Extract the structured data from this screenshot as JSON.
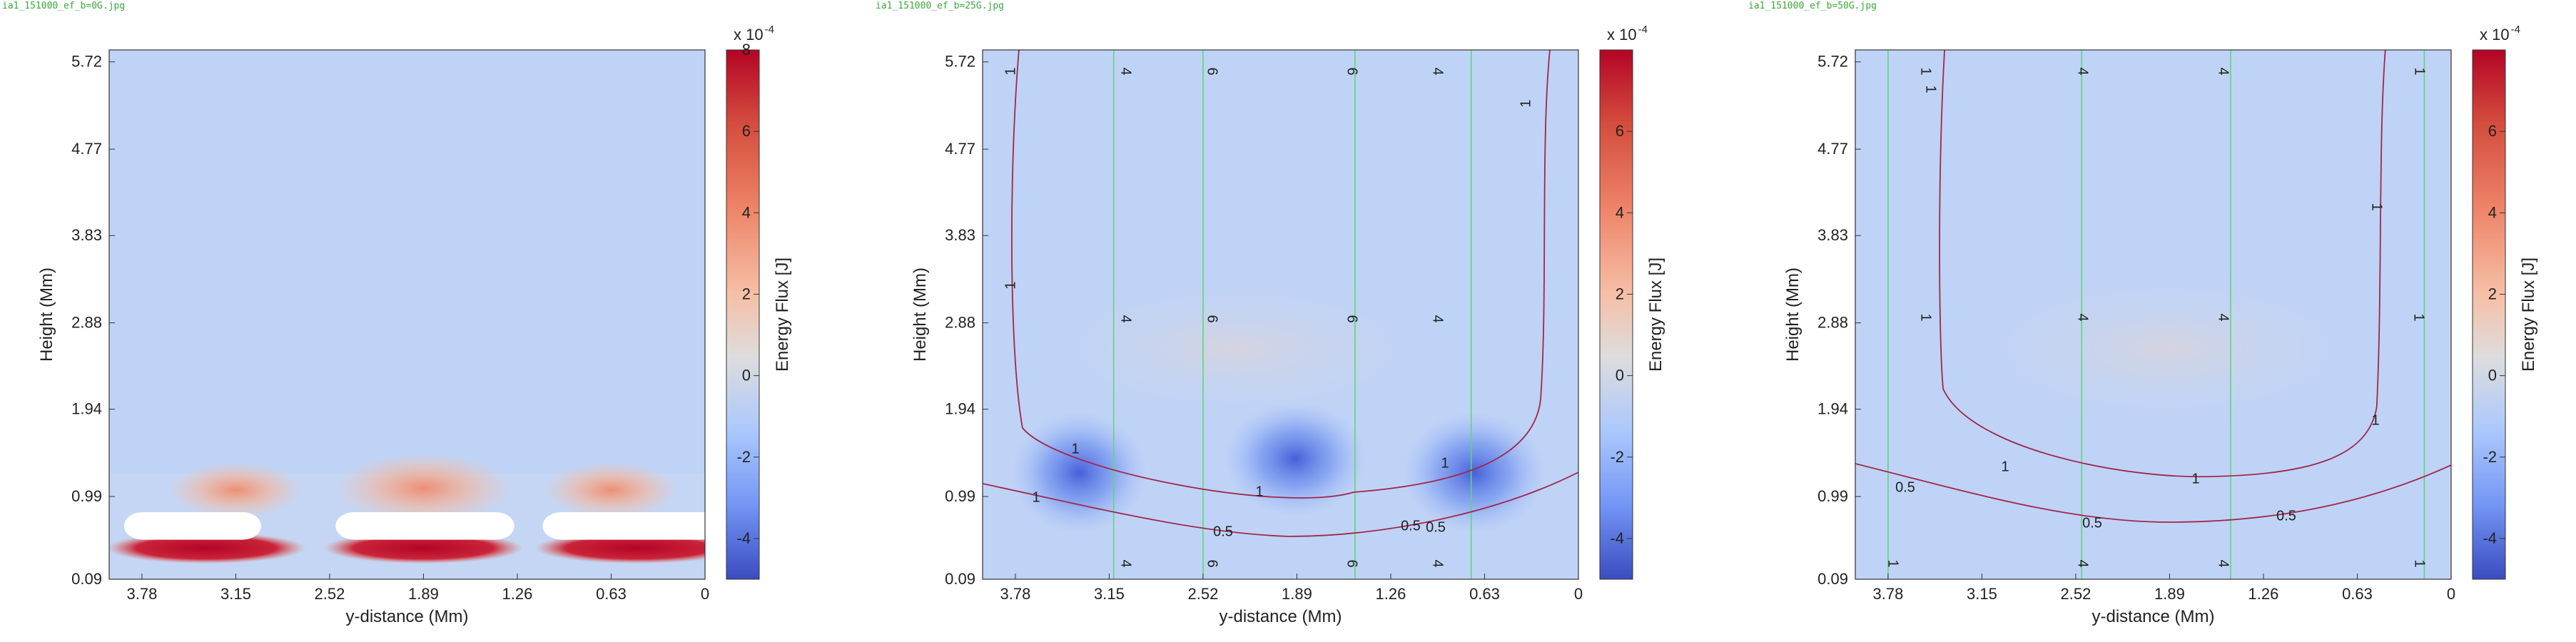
{
  "panels": [
    {
      "filename": "ia1_151000_ef_b=0G.jpg",
      "xlabel": "y-distance (Mm)",
      "ylabel": "Height (Mm)",
      "colorbar_label": "Energy Flux [J]",
      "colorbar_exponent": "x 10",
      "colorbar_power": "-4",
      "xtick_labels": [
        "3.78",
        "3.15",
        "2.52",
        "1.89",
        "1.26",
        "0.63",
        "0"
      ],
      "ytick_labels": [
        "0.09",
        "0.99",
        "1.94",
        "2.88",
        "3.83",
        "4.77",
        "5.72"
      ],
      "colorbar_ticks": [
        "8",
        "6",
        "4",
        "2",
        "0",
        "-2",
        "-4"
      ],
      "contours": []
    },
    {
      "filename": "ia1_151000_ef_b=25G.jpg",
      "xlabel": "y-distance (Mm)",
      "ylabel": "Height (Mm)",
      "colorbar_label": "Energy Flux [J]",
      "colorbar_exponent": "x 10",
      "colorbar_power": "-4",
      "xtick_labels": [
        "3.78",
        "3.15",
        "2.52",
        "1.89",
        "1.26",
        "0.63",
        "0"
      ],
      "ytick_labels": [
        "0.09",
        "0.99",
        "1.94",
        "2.88",
        "3.83",
        "4.77",
        "5.72"
      ],
      "colorbar_ticks": [
        "6",
        "4",
        "2",
        "0",
        "-2",
        "-4"
      ],
      "contours": [
        "1",
        "1",
        "1",
        "1",
        "1",
        "1",
        "1",
        "0.5",
        "0.5",
        "0.5",
        "4",
        "4",
        "4",
        "4",
        "4",
        "4",
        "6",
        "6",
        "6",
        "6",
        "6",
        "6"
      ]
    },
    {
      "filename": "ia1_151000_ef_b=50G.jpg",
      "xlabel": "y-distance (Mm)",
      "ylabel": "Height (Mm)",
      "colorbar_label": "Energy Flux [J]",
      "colorbar_exponent": "x 10",
      "colorbar_power": "-4",
      "xtick_labels": [
        "3.78",
        "3.15",
        "2.52",
        "1.89",
        "1.26",
        "0.63",
        "0"
      ],
      "ytick_labels": [
        "0.09",
        "0.99",
        "1.94",
        "2.88",
        "3.83",
        "4.77",
        "5.72"
      ],
      "colorbar_ticks": [
        "6",
        "4",
        "2",
        "0",
        "-2",
        "-4"
      ],
      "contours": [
        "1",
        "1",
        "1",
        "1",
        "1",
        "1",
        "1",
        "1",
        "1",
        "0.5",
        "0.5",
        "0.5",
        "4",
        "4",
        "4",
        "4",
        "4",
        "4",
        "1",
        "1"
      ]
    }
  ],
  "chart_data": [
    {
      "type": "heatmap",
      "x_range": [
        4.0,
        0
      ],
      "y_range": [
        0.09,
        5.85
      ],
      "colorbar_range": [
        -5.0,
        8.0
      ],
      "features": [
        {
          "kind": "positive-lobe",
          "x": 3.15,
          "y": 1.0,
          "strength": 2.4
        },
        {
          "kind": "positive-lobe",
          "x": 1.89,
          "y": 1.0,
          "strength": 3.2
        },
        {
          "kind": "positive-lobe",
          "x": 0.63,
          "y": 1.0,
          "strength": 2.4
        },
        {
          "kind": "strong-positive-band",
          "x": 3.35,
          "y": 0.42,
          "strength": 8.0
        },
        {
          "kind": "strong-positive-band",
          "x": 1.89,
          "y": 0.42,
          "strength": 8.0
        },
        {
          "kind": "strong-positive-band",
          "x": 0.45,
          "y": 0.42,
          "strength": 8.0
        }
      ]
    },
    {
      "type": "heatmap",
      "x_range": [
        4.0,
        0
      ],
      "y_range": [
        0.09,
        5.85
      ],
      "colorbar_range": [
        -5.0,
        8.0
      ],
      "features": [
        {
          "kind": "negative-lobe",
          "x": 3.35,
          "y": 1.3,
          "strength": -4.0
        },
        {
          "kind": "negative-lobe",
          "x": 1.9,
          "y": 1.4,
          "strength": -3.0
        },
        {
          "kind": "negative-lobe",
          "x": 0.7,
          "y": 1.3,
          "strength": -4.2
        }
      ],
      "contour_levels": [
        "0.5",
        "1",
        "4",
        "6"
      ]
    },
    {
      "type": "heatmap",
      "x_range": [
        4.0,
        0
      ],
      "y_range": [
        0.09,
        5.85
      ],
      "colorbar_range": [
        -5.0,
        8.0
      ],
      "features": [],
      "contour_levels": [
        "0.5",
        "1",
        "4"
      ]
    }
  ]
}
